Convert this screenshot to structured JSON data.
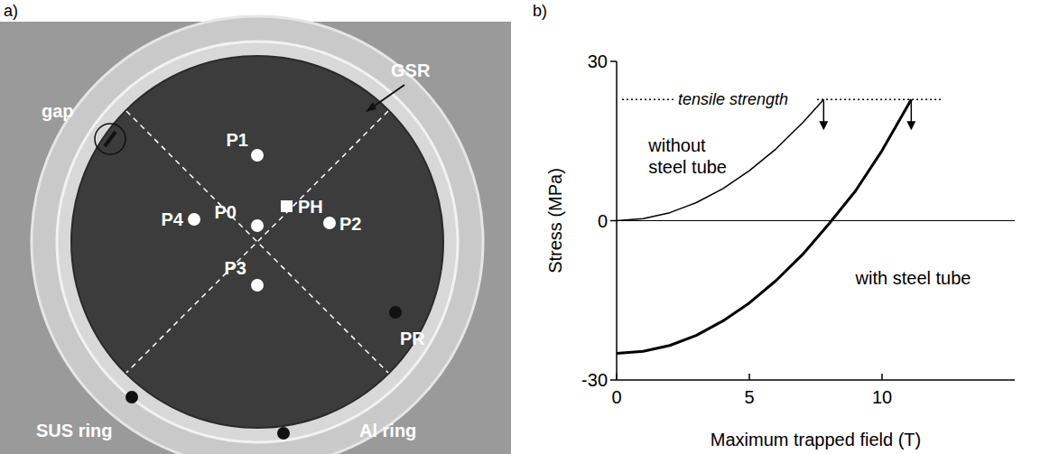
{
  "panel_labels": [
    "a)",
    "b)"
  ],
  "panel_a": {
    "points": [
      "P0",
      "P1",
      "P2",
      "P3",
      "P4"
    ],
    "hall_probe": "PH",
    "callouts": [
      "gap",
      "GSR",
      "PR",
      "SUS ring",
      "Al ring"
    ]
  },
  "chart_data": {
    "type": "line",
    "x_label": "Maximum trapped field (T)",
    "y_label": "Stress (MPa)",
    "xlim": [
      0,
      15
    ],
    "ylim": [
      -30,
      30
    ],
    "xticks": [
      0,
      5,
      10
    ],
    "yticks": [
      -30,
      0,
      30
    ],
    "grid": false,
    "series": [
      {
        "name": "without steel tube",
        "color": "#000000",
        "line_style": "solid",
        "x": [
          0,
          1,
          2,
          3,
          4,
          5,
          6,
          7,
          7.8
        ],
        "values": [
          0,
          0.4,
          1.5,
          3.4,
          6,
          9.4,
          13.5,
          18.4,
          22.8
        ]
      },
      {
        "name": "with steel tube",
        "color": "#000000",
        "line_style": "solid",
        "x": [
          0,
          1,
          2,
          3,
          4,
          5,
          6,
          7,
          8,
          9,
          10,
          11.1
        ],
        "values": [
          -25,
          -24.6,
          -23.5,
          -21.6,
          -18.9,
          -15.5,
          -11.3,
          -6.4,
          -0.6,
          5.6,
          13.2,
          22.8
        ]
      }
    ],
    "annotations": [
      {
        "text": "tensile strength",
        "y": 22.8
      }
    ]
  }
}
